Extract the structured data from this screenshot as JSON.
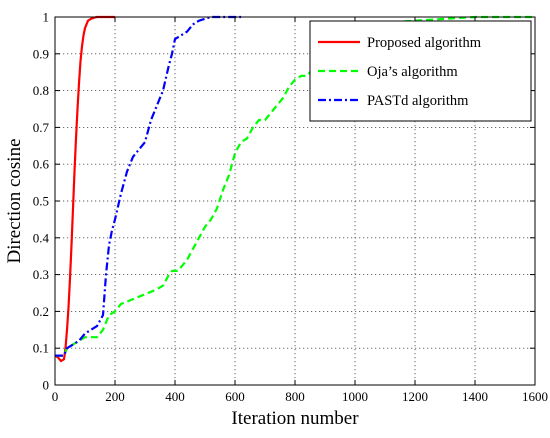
{
  "chart_data": {
    "type": "line",
    "title": "",
    "xlabel": "Iteration number",
    "ylabel": "Direction cosine",
    "xlim": [
      0,
      1600
    ],
    "ylim": [
      0,
      1
    ],
    "xticks": [
      0,
      200,
      400,
      600,
      800,
      1000,
      1200,
      1400,
      1600
    ],
    "yticks": [
      0,
      0.1,
      0.2,
      0.3,
      0.4,
      0.5,
      0.6,
      0.7,
      0.8,
      0.9,
      1
    ],
    "xtick_labels": [
      "0",
      "200",
      "400",
      "600",
      "800",
      "1000",
      "1200",
      "1400",
      "1600"
    ],
    "ytick_labels": [
      "0",
      "0.1",
      "0.2",
      "0.3",
      "0.4",
      "0.5",
      "0.6",
      "0.7",
      "0.8",
      "0.9",
      "1"
    ],
    "grid": true,
    "legend_position": "top-right",
    "series": [
      {
        "name": "Proposed algorithm",
        "color": "#ff0000",
        "style": "solid",
        "x": [
          0,
          10,
          20,
          30,
          35,
          40,
          45,
          50,
          55,
          60,
          65,
          70,
          75,
          80,
          85,
          90,
          95,
          100,
          110,
          120,
          130,
          140,
          160,
          200
        ],
        "y": [
          0.08,
          0.075,
          0.065,
          0.07,
          0.1,
          0.15,
          0.21,
          0.29,
          0.38,
          0.48,
          0.58,
          0.67,
          0.75,
          0.82,
          0.88,
          0.92,
          0.95,
          0.97,
          0.99,
          0.995,
          0.998,
          1.0,
          1.0,
          1.0
        ]
      },
      {
        "name": "Oja’s algorithm",
        "color": "#00ff00",
        "style": "dashed",
        "x": [
          0,
          20,
          30,
          40,
          60,
          80,
          100,
          120,
          140,
          160,
          180,
          200,
          220,
          250,
          280,
          310,
          340,
          360,
          380,
          390,
          410,
          420,
          440,
          460,
          480,
          500,
          520,
          540,
          560,
          580,
          600,
          620,
          640,
          660,
          680,
          700,
          720,
          740,
          760,
          780,
          800,
          820,
          840,
          860,
          880,
          900,
          920,
          960,
          1000,
          1100,
          1200,
          1300,
          1400,
          1500,
          1600
        ],
        "y": [
          0.08,
          0.08,
          0.08,
          0.1,
          0.11,
          0.12,
          0.13,
          0.13,
          0.13,
          0.15,
          0.19,
          0.2,
          0.22,
          0.23,
          0.24,
          0.25,
          0.26,
          0.27,
          0.3,
          0.31,
          0.31,
          0.32,
          0.34,
          0.37,
          0.4,
          0.43,
          0.45,
          0.48,
          0.53,
          0.57,
          0.63,
          0.66,
          0.67,
          0.7,
          0.72,
          0.72,
          0.74,
          0.76,
          0.78,
          0.81,
          0.83,
          0.84,
          0.84,
          0.86,
          0.89,
          0.91,
          0.95,
          0.97,
          0.98,
          0.985,
          0.99,
          0.995,
          1.0,
          1.0,
          1.0
        ]
      },
      {
        "name": "PASTd algorithm",
        "color": "#0000ff",
        "style": "dashdot",
        "x": [
          0,
          20,
          30,
          40,
          60,
          80,
          100,
          120,
          140,
          160,
          170,
          180,
          190,
          200,
          220,
          240,
          260,
          280,
          300,
          320,
          340,
          360,
          380,
          390,
          400,
          420,
          440,
          460,
          480,
          500,
          520,
          540,
          560,
          580,
          600,
          620
        ],
        "y": [
          0.08,
          0.08,
          0.08,
          0.1,
          0.11,
          0.12,
          0.14,
          0.15,
          0.16,
          0.19,
          0.3,
          0.38,
          0.42,
          0.45,
          0.52,
          0.58,
          0.62,
          0.64,
          0.66,
          0.72,
          0.76,
          0.8,
          0.87,
          0.9,
          0.94,
          0.95,
          0.96,
          0.98,
          0.99,
          0.995,
          1.0,
          1.0,
          1.0,
          1.0,
          1.0,
          1.0
        ]
      }
    ]
  }
}
